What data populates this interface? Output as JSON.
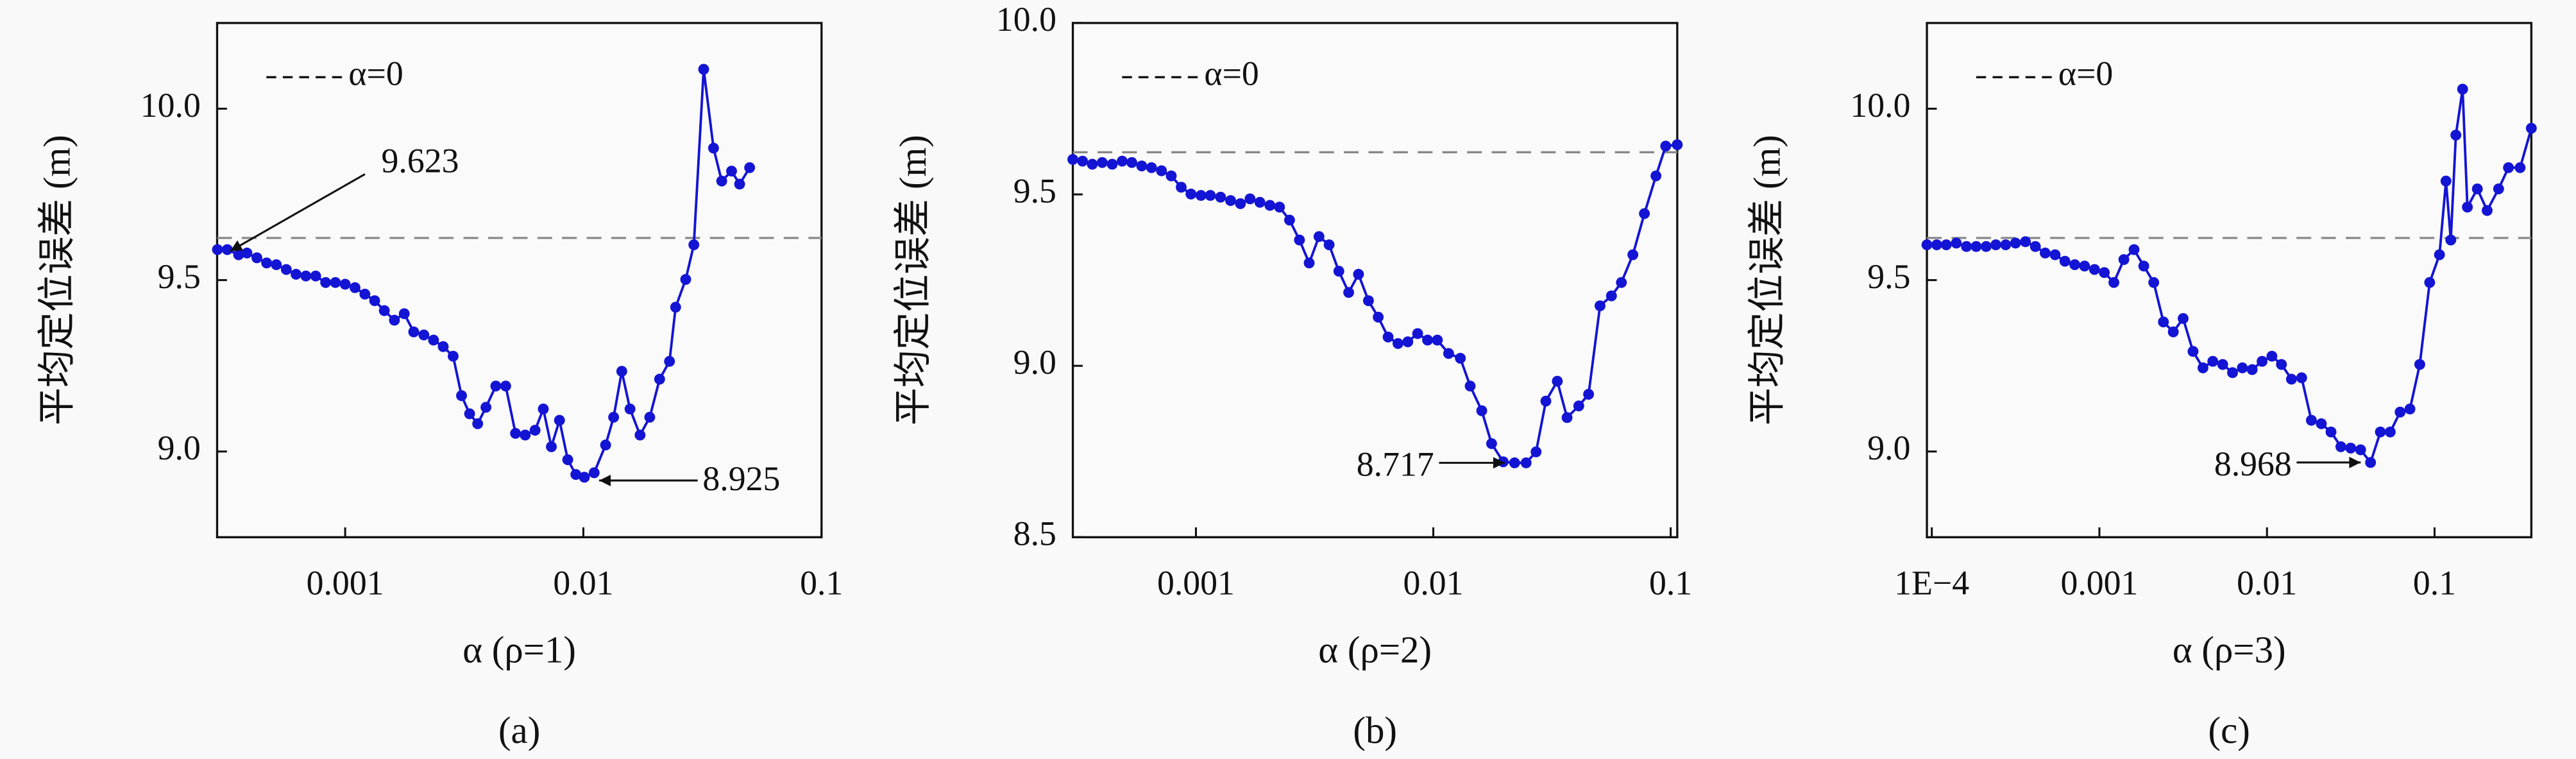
{
  "chart_data": [
    {
      "type": "line",
      "caption": "(a)",
      "xlabel": "α (ρ=1)",
      "ylabel": "平均定位误差 (m)",
      "xscale": "log",
      "xlim": [
        0.00029,
        0.1
      ],
      "ylim": [
        8.75,
        10.25
      ],
      "xticks": [
        0.001,
        0.01,
        0.1
      ],
      "yticks": [
        {
          "value": 9.0,
          "label": "9.0"
        },
        9.5,
        {
          "value": 10.0,
          "label": "10.0"
        }
      ],
      "reference_line": {
        "value": 9.623,
        "label": "α=0",
        "color": "#888888"
      },
      "annotations": [
        "9.623",
        "8.925"
      ],
      "x": [
        0.000291,
        0.00032,
        0.000357,
        0.000387,
        0.000426,
        0.000468,
        0.000514,
        0.000566,
        0.000622,
        0.000684,
        0.000752,
        0.000828,
        0.00091,
        0.001,
        0.0011,
        0.00121,
        0.00133,
        0.00146,
        0.00161,
        0.00177,
        0.00194,
        0.00214,
        0.00235,
        0.00258,
        0.00284,
        0.00308,
        0.00333,
        0.0036,
        0.0039,
        0.00429,
        0.00472,
        0.00519,
        0.0057,
        0.00627,
        0.00679,
        0.00734,
        0.00794,
        0.0086,
        0.0093,
        0.0101,
        0.0111,
        0.0124,
        0.0134,
        0.0145,
        0.0157,
        0.0173,
        0.019,
        0.0209,
        0.023,
        0.0244,
        0.0269,
        0.0291,
        0.032,
        0.0352,
        0.0381,
        0.0419,
        0.0453,
        0.0499
      ],
      "series": [
        {
          "color": "#1414d4",
          "values": [
            9.589,
            9.589,
            9.574,
            9.579,
            9.565,
            9.55,
            9.545,
            9.531,
            9.517,
            9.512,
            9.512,
            9.493,
            9.493,
            9.488,
            9.478,
            9.459,
            9.44,
            9.411,
            9.383,
            9.402,
            9.349,
            9.34,
            9.325,
            9.306,
            9.278,
            9.163,
            9.11,
            9.081,
            9.129,
            9.191,
            9.191,
            9.053,
            9.048,
            9.062,
            9.124,
            9.014,
            9.091,
            8.976,
            8.933,
            8.925,
            8.938,
            9.019,
            9.1,
            9.234,
            9.124,
            9.048,
            9.1,
            9.211,
            9.263,
            9.421,
            9.502,
            9.603,
            10.115,
            9.885,
            9.789,
            9.818,
            9.78,
            9.828
          ]
        }
      ]
    },
    {
      "type": "line",
      "caption": "(b)",
      "xlabel": "α (ρ=2)",
      "ylabel": "平均定位误差 (m)",
      "xscale": "log",
      "xlim": [
        0.000303,
        0.1066
      ],
      "ylim": [
        8.5,
        10.0
      ],
      "xticks": [
        0.001,
        0.01,
        0.1
      ],
      "yticks": [
        8.5,
        {
          "value": 9.0,
          "label": "9.0"
        },
        9.5,
        {
          "value": 10.0,
          "label": "10.0"
        }
      ],
      "reference_line": {
        "value": 9.623,
        "label": "α=0",
        "color": "#888888"
      },
      "annotations": [
        "8.717"
      ],
      "x": [
        0.000303,
        0.000333,
        0.000366,
        0.000403,
        0.000444,
        0.000489,
        0.000537,
        0.000591,
        0.00065,
        0.000716,
        0.000787,
        0.000867,
        0.000953,
        0.00105,
        0.00115,
        0.00127,
        0.0014,
        0.00154,
        0.00169,
        0.00186,
        0.00205,
        0.00225,
        0.00248,
        0.00273,
        0.003,
        0.0033,
        0.00364,
        0.004,
        0.0044,
        0.00484,
        0.00533,
        0.00586,
        0.00645,
        0.0071,
        0.00781,
        0.00859,
        0.00946,
        0.0104,
        0.0116,
        0.013,
        0.0143,
        0.016,
        0.0176,
        0.0197,
        0.022,
        0.0246,
        0.0271,
        0.0298,
        0.0333,
        0.0366,
        0.041,
        0.0451,
        0.0504,
        0.0563,
        0.062,
        0.0693,
        0.0775,
        0.0867,
        0.0953,
        0.1066
      ],
      "series": [
        {
          "color": "#1414d4",
          "values": [
            9.602,
            9.597,
            9.588,
            9.593,
            9.588,
            9.597,
            9.593,
            9.583,
            9.578,
            9.569,
            9.554,
            9.521,
            9.501,
            9.497,
            9.497,
            9.492,
            9.482,
            9.473,
            9.487,
            9.477,
            9.468,
            9.463,
            9.425,
            9.367,
            9.3,
            9.377,
            9.353,
            9.276,
            9.214,
            9.267,
            9.19,
            9.142,
            9.084,
            9.065,
            9.07,
            9.094,
            9.075,
            9.075,
            9.036,
            9.022,
            8.941,
            8.869,
            8.773,
            8.72,
            8.717,
            8.717,
            8.749,
            8.897,
            8.955,
            8.849,
            8.883,
            8.917,
            9.175,
            9.204,
            9.243,
            9.324,
            9.444,
            9.554,
            9.641,
            9.645
          ]
        }
      ]
    },
    {
      "type": "line",
      "caption": "(c)",
      "xlabel": "α (ρ=3)",
      "ylabel": "平均定位误差 (m)",
      "xscale": "log",
      "xlim": [
        9.35e-05,
        0.378
      ],
      "ylim": [
        8.75,
        10.25
      ],
      "xticks": [
        {
          "value": 0.0001,
          "label": "1E−4"
        },
        0.001,
        0.01,
        0.1
      ],
      "yticks": [
        {
          "value": 9.0,
          "label": "9.0"
        },
        9.5,
        {
          "value": 10.0,
          "label": "10.0"
        }
      ],
      "reference_line": {
        "value": 9.623,
        "label": "α=0",
        "color": "#888888"
      },
      "annotations": [
        "8.968"
      ],
      "x": [
        9.35e-05,
        0.000107,
        0.000122,
        0.00014,
        0.000161,
        0.000184,
        0.000211,
        0.000241,
        0.000276,
        0.000316,
        0.000362,
        0.000415,
        0.000475,
        0.000544,
        0.000623,
        0.000713,
        0.000816,
        0.000935,
        0.00107,
        0.00122,
        0.0014,
        0.00161,
        0.00184,
        0.00211,
        0.00241,
        0.00276,
        0.00316,
        0.00362,
        0.00415,
        0.00475,
        0.00544,
        0.00623,
        0.00713,
        0.00816,
        0.00935,
        0.0107,
        0.0122,
        0.014,
        0.0161,
        0.0184,
        0.0211,
        0.0241,
        0.0276,
        0.0316,
        0.0362,
        0.0415,
        0.0475,
        0.0544,
        0.0623,
        0.0713,
        0.0816,
        0.0935,
        0.107,
        0.117,
        0.125,
        0.134,
        0.147,
        0.157,
        0.18,
        0.206,
        0.241,
        0.276,
        0.324,
        0.378
      ],
      "series": [
        {
          "color": "#1414d4",
          "values": [
            9.603,
            9.603,
            9.603,
            9.608,
            9.598,
            9.598,
            9.598,
            9.603,
            9.603,
            9.608,
            9.612,
            9.598,
            9.579,
            9.574,
            9.555,
            9.545,
            9.541,
            9.531,
            9.522,
            9.493,
            9.56,
            9.589,
            9.541,
            9.493,
            9.378,
            9.349,
            9.388,
            9.292,
            9.244,
            9.263,
            9.254,
            9.23,
            9.244,
            9.239,
            9.263,
            9.278,
            9.254,
            9.211,
            9.215,
            9.091,
            9.081,
            9.057,
            9.014,
            9.01,
            9.005,
            8.968,
            9.057,
            9.057,
            9.115,
            9.124,
            9.254,
            9.493,
            9.574,
            9.789,
            9.617,
            9.923,
            10.057,
            9.713,
            9.766,
            9.703,
            9.766,
            9.828,
            9.828,
            9.943
          ]
        }
      ]
    }
  ]
}
